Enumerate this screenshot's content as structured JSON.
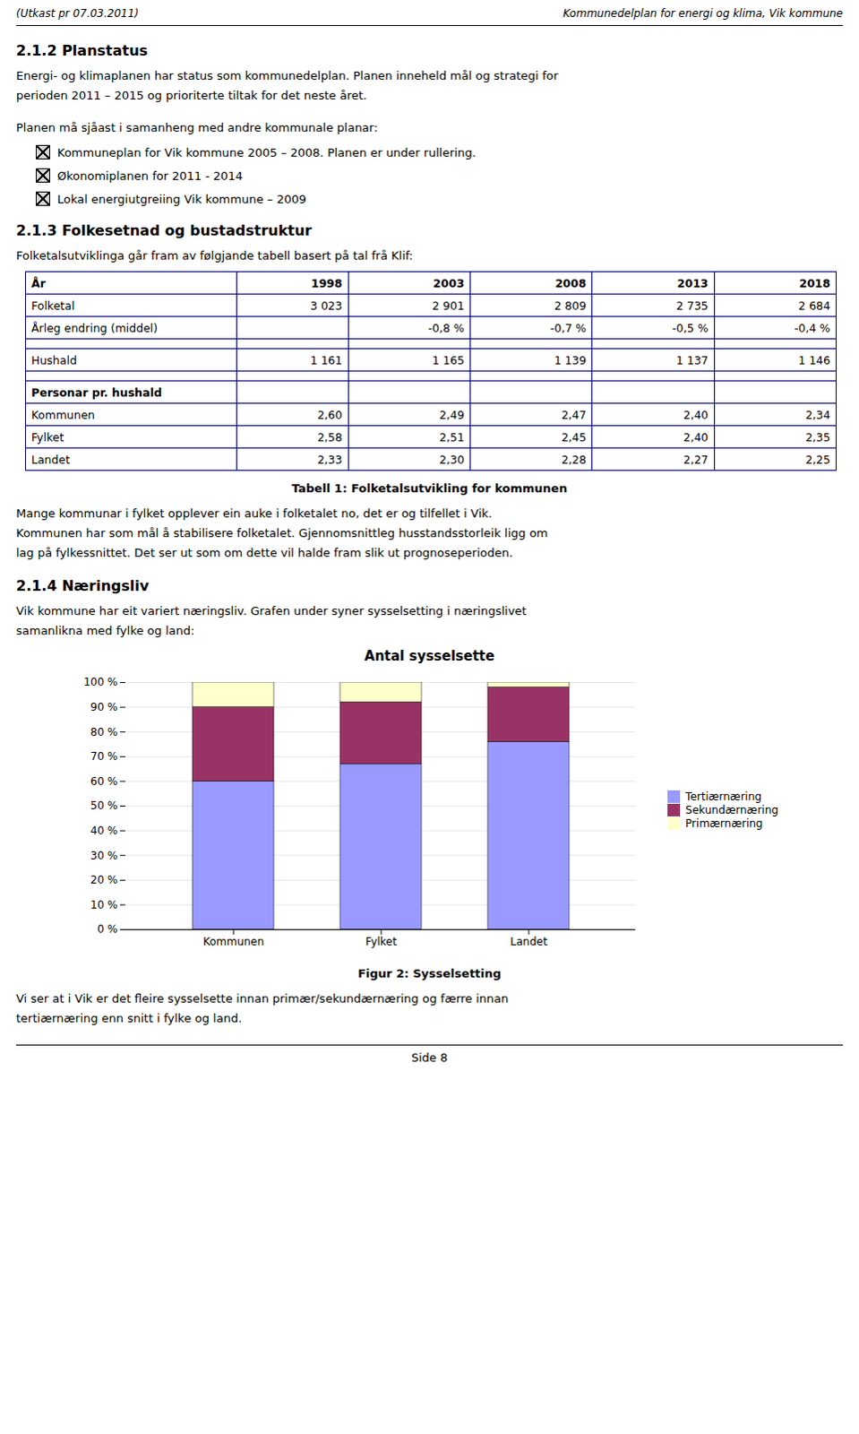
{
  "page": {
    "header_left": "(Utkast pr 07.03.2011)",
    "header_right": "Kommunedelplan for energi og klima, Vik kommune",
    "section_212": "2.1.2  Planstatus",
    "para_212_1a": "Energi- og klimaplanen har status som kommunedelplan. Planen inneheld mål og strategi for",
    "para_212_1b": "perioden 2011 – 2015 og prioriterte tiltak for det neste året.",
    "para_212_2": "Planen må sjåast i samanheng med andre kommunale planar:",
    "bullets": [
      "Kommuneplan for Vik kommune 2005 – 2008. Planen er under rullering.",
      "Økonomiplanen for 2011 - 2014",
      "Lokal energiutgreiing Vik kommune – 2009"
    ],
    "section_213": "2.1.3  Folkesetnad og bustadstruktur",
    "para_213": "Folketalsutviklinga går fram av følgjande tabell basert på tal frå Klif:",
    "table_headers": [
      "År",
      "1998",
      "2003",
      "2008",
      "2013",
      "2018"
    ],
    "table_row1": [
      "Folketal",
      "3 023",
      "2 901",
      "2 809",
      "2 735",
      "2 684"
    ],
    "table_row2": [
      "Årleg endring (middel)",
      "",
      "-0,8 %",
      "-0,7 %",
      "-0,5 %",
      "-0,4 %"
    ],
    "table_row3": [
      "Hushald",
      "1 161",
      "1 165",
      "1 139",
      "1 137",
      "1 146"
    ],
    "table_row4_header": "Personar pr. hushald",
    "table_row5": [
      "Kommunen",
      "2,60",
      "2,49",
      "2,47",
      "2,40",
      "2,34"
    ],
    "table_row6": [
      "Fylket",
      "2,58",
      "2,51",
      "2,45",
      "2,40",
      "2,35"
    ],
    "table_row7": [
      "Landet",
      "2,33",
      "2,30",
      "2,28",
      "2,27",
      "2,25"
    ],
    "table_caption": "Tabell 1: Folketalsutvikling for kommunen",
    "para_after_table": [
      "Mange kommunar i fylket opplever ein auke i folketalet no, det er og tilfellet i Vik.",
      "Kommunen har som mål å stabilisere folketalet. Gjennomsnittleg husstandsstorleik ligg om",
      "lag på fylkessnittet. Det ser ut som om dette vil halde fram slik ut prognoseperioden."
    ],
    "section_214": "2.1.4  Næringsliv",
    "para_214": [
      "Vik kommune har eit variert næringsliv. Grafen under syner sysselsetting i næringslivet",
      "samanlikna med fylke og land:"
    ],
    "fig_caption": "Figur 2: Sysselsetting",
    "para_final": [
      "Vi ser at i Vik er det fleire sysselsette innan primær/sekundærnæring og færre innan",
      "tertiærnæring enn snitt i fylke og land."
    ],
    "footer": "Side 8"
  },
  "chart_data": {
    "type": "bar",
    "title": "Antal sysselsette",
    "stacked": true,
    "categories": [
      "Kommunen",
      "Fylket",
      "Landet"
    ],
    "series": [
      {
        "name": "Tertiærnæring",
        "color": "#9999FF",
        "values": [
          60,
          67,
          76
        ]
      },
      {
        "name": "Sekundærnæring",
        "color": "#993366",
        "values": [
          30,
          25,
          22
        ]
      },
      {
        "name": "Primærnæring",
        "color": "#FFFFCC",
        "values": [
          10,
          8,
          2
        ]
      }
    ],
    "ylim": [
      0,
      100
    ],
    "yticks": [
      {
        "value": 0,
        "label": "0 %"
      },
      {
        "value": 10,
        "label": "10 %"
      },
      {
        "value": 20,
        "label": "20 %"
      },
      {
        "value": 30,
        "label": "30 %"
      },
      {
        "value": 40,
        "label": "40 %"
      },
      {
        "value": 50,
        "label": "50 %"
      },
      {
        "value": 60,
        "label": "60 %"
      },
      {
        "value": 70,
        "label": "70 %"
      },
      {
        "value": 80,
        "label": "80 %"
      },
      {
        "value": 90,
        "label": "90 %"
      },
      {
        "value": 100,
        "label": "100 %"
      }
    ],
    "grid": true,
    "legend": "right"
  }
}
